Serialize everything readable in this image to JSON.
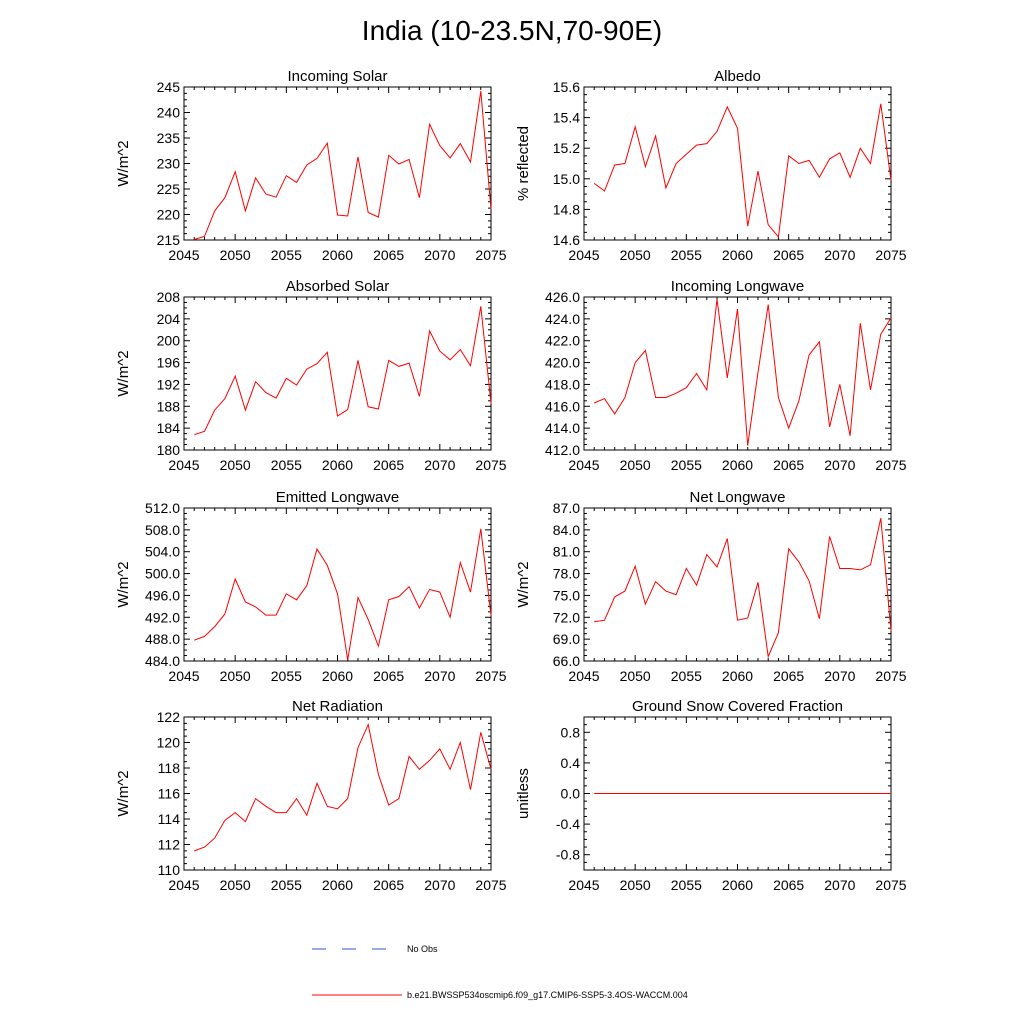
{
  "figure": {
    "title": "India (10-23.5N,70-90E)",
    "series_color": "#ff0000",
    "obs_color": "#3355cc"
  },
  "legend": {
    "obs_label": "No Obs",
    "model_label": "b.e21.BWSSP534oscmip6.f09_g17.CMIP6-SSP5-3.4OS-WACCM.004"
  },
  "chart_data": [
    {
      "id": "incoming-solar",
      "type": "line",
      "title": "Incoming Solar",
      "ylabel": "W/m^2",
      "xlim": [
        2045,
        2075
      ],
      "ylim": [
        215,
        245
      ],
      "xticks": [
        2045,
        2050,
        2055,
        2060,
        2065,
        2070,
        2075
      ],
      "xtick_labels": [
        "2045",
        "2050",
        "2055",
        "2060",
        "2065",
        "2070",
        "2075"
      ],
      "yticks": [
        215,
        220,
        225,
        230,
        235,
        240,
        245
      ],
      "ytick_labels": [
        "215",
        "220",
        "225",
        "230",
        "235",
        "240",
        "245"
      ],
      "x": [
        2046,
        2047,
        2048,
        2049,
        2050,
        2051,
        2052,
        2053,
        2054,
        2055,
        2056,
        2057,
        2058,
        2059,
        2060,
        2061,
        2062,
        2063,
        2064,
        2065,
        2066,
        2067,
        2068,
        2069,
        2070,
        2071,
        2072,
        2073,
        2074,
        2075
      ],
      "y": [
        215.1,
        215.7,
        220.7,
        223.3,
        228.4,
        220.7,
        227.2,
        224.0,
        223.4,
        227.6,
        226.3,
        229.7,
        231.0,
        234.0,
        219.9,
        219.7,
        231.3,
        220.4,
        219.5,
        231.6,
        229.9,
        230.8,
        223.3,
        237.7,
        233.5,
        231.1,
        233.9,
        230.3,
        244.2,
        221.0
      ]
    },
    {
      "id": "albedo",
      "type": "line",
      "title": "Albedo",
      "ylabel": "% reflected",
      "xlim": [
        2045,
        2075
      ],
      "ylim": [
        14.6,
        15.6
      ],
      "xticks": [
        2045,
        2050,
        2055,
        2060,
        2065,
        2070,
        2075
      ],
      "xtick_labels": [
        "2045",
        "2050",
        "2055",
        "2060",
        "2065",
        "2070",
        "2075"
      ],
      "yticks": [
        14.6,
        14.8,
        15.0,
        15.2,
        15.4,
        15.6
      ],
      "ytick_labels": [
        "14.6",
        "14.8",
        "15.0",
        "15.2",
        "15.4",
        "15.6"
      ],
      "x": [
        2046,
        2047,
        2048,
        2049,
        2050,
        2051,
        2052,
        2053,
        2054,
        2055,
        2056,
        2057,
        2058,
        2059,
        2060,
        2061,
        2062,
        2063,
        2064,
        2065,
        2066,
        2067,
        2068,
        2069,
        2070,
        2071,
        2072,
        2073,
        2074,
        2075
      ],
      "y": [
        14.97,
        14.92,
        15.09,
        15.1,
        15.34,
        15.08,
        15.28,
        14.94,
        15.1,
        15.16,
        15.22,
        15.23,
        15.31,
        15.47,
        15.33,
        14.69,
        15.05,
        14.7,
        14.62,
        15.15,
        15.1,
        15.12,
        15.01,
        15.13,
        15.17,
        15.01,
        15.2,
        15.1,
        15.49,
        14.99
      ]
    },
    {
      "id": "absorbed-solar",
      "type": "line",
      "title": "Absorbed Solar",
      "ylabel": "W/m^2",
      "xlim": [
        2045,
        2075
      ],
      "ylim": [
        180,
        208
      ],
      "xticks": [
        2045,
        2050,
        2055,
        2060,
        2065,
        2070,
        2075
      ],
      "xtick_labels": [
        "2045",
        "2050",
        "2055",
        "2060",
        "2065",
        "2070",
        "2075"
      ],
      "yticks": [
        180,
        184,
        188,
        192,
        196,
        200,
        204,
        208
      ],
      "ytick_labels": [
        "180",
        "184",
        "188",
        "192",
        "196",
        "200",
        "204",
        "208"
      ],
      "x": [
        2046,
        2047,
        2048,
        2049,
        2050,
        2051,
        2052,
        2053,
        2054,
        2055,
        2056,
        2057,
        2058,
        2059,
        2060,
        2061,
        2062,
        2063,
        2064,
        2065,
        2066,
        2067,
        2068,
        2069,
        2070,
        2071,
        2072,
        2073,
        2074,
        2075
      ],
      "y": [
        182.8,
        183.4,
        187.3,
        189.4,
        193.5,
        187.3,
        192.5,
        190.5,
        189.5,
        193.1,
        191.9,
        194.8,
        195.8,
        197.9,
        186.2,
        187.4,
        196.4,
        187.9,
        187.5,
        196.4,
        195.3,
        195.9,
        189.8,
        201.8,
        198.1,
        196.5,
        198.4,
        195.4,
        206.3,
        188.5
      ]
    },
    {
      "id": "incoming-longwave",
      "type": "line",
      "title": "Incoming Longwave",
      "ylabel": "",
      "xlim": [
        2045,
        2075
      ],
      "ylim": [
        412,
        426
      ],
      "xticks": [
        2045,
        2050,
        2055,
        2060,
        2065,
        2070,
        2075
      ],
      "xtick_labels": [
        "2045",
        "2050",
        "2055",
        "2060",
        "2065",
        "2070",
        "2075"
      ],
      "yticks": [
        412,
        414,
        416,
        418,
        420,
        422,
        424,
        426
      ],
      "ytick_labels": [
        "412.0",
        "414.0",
        "416.0",
        "418.0",
        "420.0",
        "422.0",
        "424.0",
        "426.0"
      ],
      "x": [
        2046,
        2047,
        2048,
        2049,
        2050,
        2051,
        2052,
        2053,
        2054,
        2055,
        2056,
        2057,
        2058,
        2059,
        2060,
        2061,
        2062,
        2063,
        2064,
        2065,
        2066,
        2067,
        2068,
        2069,
        2070,
        2071,
        2072,
        2073,
        2074,
        2075
      ],
      "y": [
        416.3,
        416.7,
        415.3,
        416.8,
        420.0,
        421.1,
        416.8,
        416.8,
        417.2,
        417.7,
        419.0,
        417.5,
        425.8,
        418.6,
        424.9,
        412.4,
        419.1,
        425.3,
        416.8,
        414.0,
        416.5,
        420.7,
        421.9,
        414.1,
        418.0,
        413.3,
        423.6,
        417.5,
        422.6,
        424.1
      ]
    },
    {
      "id": "emitted-longwave",
      "type": "line",
      "title": "Emitted Longwave",
      "ylabel": "W/m^2",
      "xlim": [
        2045,
        2075
      ],
      "ylim": [
        484,
        512
      ],
      "xticks": [
        2045,
        2050,
        2055,
        2060,
        2065,
        2070,
        2075
      ],
      "xtick_labels": [
        "2045",
        "2050",
        "2055",
        "2060",
        "2065",
        "2070",
        "2075"
      ],
      "yticks": [
        484,
        488,
        492,
        496,
        500,
        504,
        508,
        512
      ],
      "ytick_labels": [
        "484.0",
        "488.0",
        "492.0",
        "496.0",
        "500.0",
        "504.0",
        "508.0",
        "512.0"
      ],
      "x": [
        2046,
        2047,
        2048,
        2049,
        2050,
        2051,
        2052,
        2053,
        2054,
        2055,
        2056,
        2057,
        2058,
        2059,
        2060,
        2061,
        2062,
        2063,
        2064,
        2065,
        2066,
        2067,
        2068,
        2069,
        2070,
        2071,
        2072,
        2073,
        2074,
        2075
      ],
      "y": [
        487.8,
        488.5,
        490.3,
        492.6,
        499.0,
        494.8,
        493.9,
        492.4,
        492.4,
        496.3,
        495.2,
        497.8,
        504.5,
        501.5,
        496.3,
        484.2,
        495.6,
        491.6,
        486.7,
        495.2,
        495.8,
        497.6,
        493.7,
        497.1,
        496.6,
        492.0,
        502.0,
        496.6,
        508.2,
        492.3
      ]
    },
    {
      "id": "net-longwave",
      "type": "line",
      "title": "Net Longwave",
      "ylabel": "W/m^2",
      "xlim": [
        2045,
        2075
      ],
      "ylim": [
        66,
        87
      ],
      "xticks": [
        2045,
        2050,
        2055,
        2060,
        2065,
        2070,
        2075
      ],
      "xtick_labels": [
        "2045",
        "2050",
        "2055",
        "2060",
        "2065",
        "2070",
        "2075"
      ],
      "yticks": [
        66,
        69,
        72,
        75,
        78,
        81,
        84,
        87
      ],
      "ytick_labels": [
        "66.0",
        "69.0",
        "72.0",
        "75.0",
        "78.0",
        "81.0",
        "84.0",
        "87.0"
      ],
      "x": [
        2046,
        2047,
        2048,
        2049,
        2050,
        2051,
        2052,
        2053,
        2054,
        2055,
        2056,
        2057,
        2058,
        2059,
        2060,
        2061,
        2062,
        2063,
        2064,
        2065,
        2066,
        2067,
        2068,
        2069,
        2070,
        2071,
        2072,
        2073,
        2074,
        2075
      ],
      "y": [
        71.4,
        71.6,
        74.8,
        75.6,
        79.0,
        73.8,
        76.9,
        75.6,
        75.1,
        78.7,
        76.4,
        80.6,
        78.9,
        82.8,
        71.6,
        71.9,
        76.8,
        66.6,
        69.9,
        81.4,
        79.6,
        77.0,
        71.8,
        83.1,
        78.7,
        78.7,
        78.5,
        79.2,
        85.6,
        70.1
      ]
    },
    {
      "id": "net-radiation",
      "type": "line",
      "title": "Net Radiation",
      "ylabel": "W/m^2",
      "xlim": [
        2045,
        2075
      ],
      "ylim": [
        110,
        122
      ],
      "xticks": [
        2045,
        2050,
        2055,
        2060,
        2065,
        2070,
        2075
      ],
      "xtick_labels": [
        "2045",
        "2050",
        "2055",
        "2060",
        "2065",
        "2070",
        "2075"
      ],
      "yticks": [
        110,
        112,
        114,
        116,
        118,
        120,
        122
      ],
      "ytick_labels": [
        "110",
        "112",
        "114",
        "116",
        "118",
        "120",
        "122"
      ],
      "x": [
        2046,
        2047,
        2048,
        2049,
        2050,
        2051,
        2052,
        2053,
        2054,
        2055,
        2056,
        2057,
        2058,
        2059,
        2060,
        2061,
        2062,
        2063,
        2064,
        2065,
        2066,
        2067,
        2068,
        2069,
        2070,
        2071,
        2072,
        2073,
        2074,
        2075
      ],
      "y": [
        111.5,
        111.8,
        112.5,
        113.9,
        114.5,
        113.8,
        115.6,
        115.0,
        114.5,
        114.5,
        115.6,
        114.3,
        116.8,
        115.0,
        114.8,
        115.6,
        119.6,
        121.4,
        117.5,
        115.1,
        115.6,
        118.9,
        117.9,
        118.6,
        119.5,
        117.9,
        120.0,
        116.3,
        120.8,
        117.9
      ]
    },
    {
      "id": "ground-snow",
      "type": "line",
      "title": "Ground Snow Covered Fraction",
      "ylabel": "unitless",
      "xlim": [
        2045,
        2075
      ],
      "ylim": [
        -1.0,
        1.0
      ],
      "xticks": [
        2045,
        2050,
        2055,
        2060,
        2065,
        2070,
        2075
      ],
      "xtick_labels": [
        "2045",
        "2050",
        "2055",
        "2060",
        "2065",
        "2070",
        "2075"
      ],
      "yticks": [
        -0.8,
        -0.4,
        0.0,
        0.4,
        0.8
      ],
      "ytick_labels": [
        "-0.8",
        "-0.4",
        "0.0",
        "0.4",
        "0.8"
      ],
      "x": [
        2046,
        2047,
        2048,
        2049,
        2050,
        2051,
        2052,
        2053,
        2054,
        2055,
        2056,
        2057,
        2058,
        2059,
        2060,
        2061,
        2062,
        2063,
        2064,
        2065,
        2066,
        2067,
        2068,
        2069,
        2070,
        2071,
        2072,
        2073,
        2074,
        2075
      ],
      "y": [
        0,
        0,
        0,
        0,
        0,
        0,
        0,
        0,
        0,
        0,
        0,
        0,
        0,
        0,
        0,
        0,
        0,
        0,
        0,
        0,
        0,
        0,
        0,
        0,
        0,
        0,
        0,
        0,
        0,
        0
      ]
    }
  ]
}
